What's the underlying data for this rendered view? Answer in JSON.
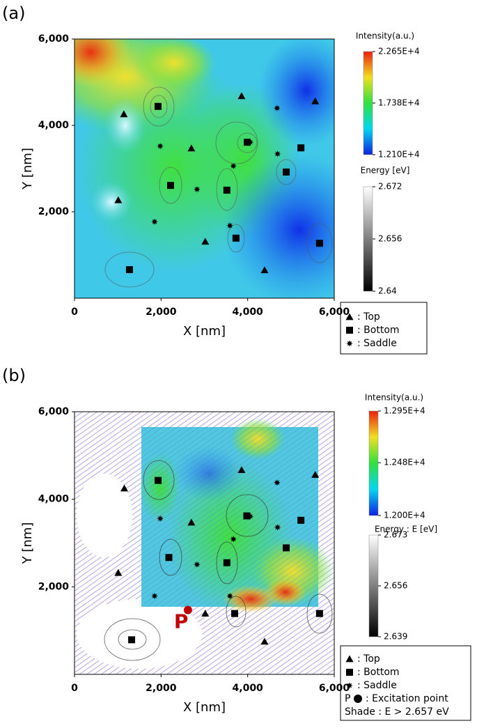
{
  "chart_data": [
    {
      "type": "scatter",
      "panel_label": "(a)",
      "xlabel": "X [nm]",
      "ylabel": "Y [nm]",
      "xlim": [
        0,
        6000
      ],
      "ylim": [
        0,
        6000
      ],
      "xticks": [
        0,
        {
          "value": 2000,
          "label": "2,000"
        },
        {
          "value": 4000,
          "label": "4,000"
        },
        {
          "value": 6000,
          "label": "6,000"
        }
      ],
      "yticks": [
        {
          "value": 2000,
          "label": "2,000"
        },
        {
          "value": 4000,
          "label": "4,000"
        },
        {
          "value": 6000,
          "label": "6,000"
        }
      ],
      "colorbars": [
        {
          "title": "Intensity(a.u.)",
          "lim": [
            12100,
            22650
          ],
          "colors": [
            "#1020e0",
            "#00d8f0",
            "#30e040",
            "#f0e020",
            "#e82010"
          ],
          "ticks": [
            {
              "value": 22650,
              "label": "2.265E+4"
            },
            {
              "value": 17380,
              "label": "1.738E+4"
            },
            {
              "value": 12100,
              "label": "1.210E+4"
            }
          ]
        },
        {
          "title": "Energy [eV]",
          "lim": [
            2.64,
            2.672
          ],
          "colors": [
            "#000000",
            "#ffffff"
          ],
          "ticks": [
            2.672,
            2.656,
            2.64
          ]
        }
      ],
      "series": [
        {
          "name": ": Top",
          "marker": "triangle",
          "color": "#000000",
          "x": [
            1140,
            3860,
            5560,
            2700,
            1010,
            3020,
            4390
          ],
          "y": [
            4260,
            4680,
            4560,
            3470,
            2270,
            1310,
            650
          ]
        },
        {
          "name": ": Bottom",
          "marker": "square",
          "color": "#000000",
          "x": [
            1930,
            3990,
            5230,
            4890,
            2220,
            3520,
            3730,
            5660,
            1270
          ],
          "y": [
            4440,
            3610,
            3480,
            2920,
            2610,
            2500,
            1390,
            1270,
            660
          ]
        },
        {
          "name": ": Saddle",
          "marker": "saddle",
          "color": "#000000",
          "x": [
            1980,
            4680,
            4690,
            3670,
            2830,
            1850,
            3590,
            4060
          ],
          "y": [
            3520,
            4400,
            3340,
            3060,
            2520,
            1770,
            1680,
            3610
          ]
        }
      ]
    },
    {
      "type": "scatter",
      "panel_label": "(b)",
      "xlabel": "X [nm]",
      "ylabel": "Y [nm]",
      "xlim": [
        0,
        6000
      ],
      "ylim": [
        0,
        6000
      ],
      "xticks": [
        0,
        {
          "value": 2000,
          "label": "2,000"
        },
        {
          "value": 4000,
          "label": "4,000"
        },
        {
          "value": 6000,
          "label": "6,000"
        }
      ],
      "yticks": [
        {
          "value": 2000,
          "label": "2,000"
        },
        {
          "value": 4000,
          "label": "4,000"
        },
        {
          "value": 6000,
          "label": "6,000"
        }
      ],
      "colorbars": [
        {
          "title": "Intensity(a.u.)",
          "lim": [
            12000,
            12950
          ],
          "colors": [
            "#1020e0",
            "#00d8f0",
            "#30e040",
            "#f0e020",
            "#e82010"
          ],
          "ticks": [
            {
              "value": 12950,
              "label": "1.295E+4"
            },
            {
              "value": 12480,
              "label": "1.248E+4"
            },
            {
              "value": 12000,
              "label": "1.200E+4"
            }
          ]
        },
        {
          "title": "Energy : E [eV]",
          "lim": [
            2.639,
            2.673
          ],
          "colors": [
            "#000000",
            "#ffffff"
          ],
          "ticks": [
            2.673,
            2.656,
            2.639
          ]
        }
      ],
      "series": [
        {
          "name": ": Top",
          "marker": "triangle",
          "color": "#000000",
          "x": [
            1150,
            3860,
            5560,
            2700,
            1010,
            3020,
            4390
          ],
          "y": [
            4250,
            4670,
            4560,
            3470,
            2320,
            1390,
            750
          ]
        },
        {
          "name": ": Bottom",
          "marker": "square",
          "color": "#000000",
          "x": [
            1930,
            3980,
            5230,
            4890,
            2180,
            3520,
            3700,
            5660,
            1320
          ],
          "y": [
            4430,
            3620,
            3520,
            2890,
            2670,
            2550,
            1390,
            1390,
            790
          ]
        },
        {
          "name": ": Saddle",
          "marker": "saddle",
          "color": "#000000",
          "x": [
            1980,
            4680,
            4690,
            3670,
            2830,
            1850,
            3590,
            4060
          ],
          "y": [
            3560,
            4380,
            3360,
            3090,
            2510,
            1790,
            1790,
            3610
          ]
        },
        {
          "name": ": Excitation point",
          "marker": "circle",
          "color": "#c00000",
          "label": "P",
          "x": [
            2620
          ],
          "y": [
            1470
          ]
        }
      ],
      "annotation": "Shade : E > 2.657 eV"
    }
  ]
}
